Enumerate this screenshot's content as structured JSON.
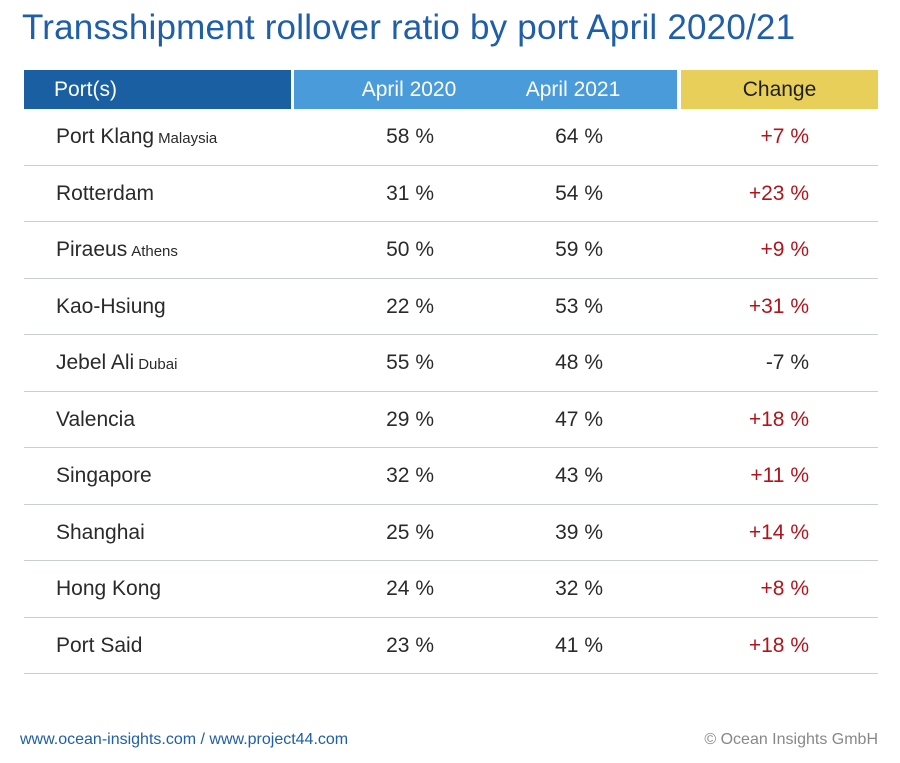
{
  "colors": {
    "title": "#1f5ea8",
    "header_port": "#1b5fa3",
    "header_years": "#4a9bd9",
    "header_change": "#e8cf5a",
    "positive_change": "#b0141c",
    "negative_change": "#2a2a2a"
  },
  "chart_data": {
    "type": "table",
    "title": "Transshipment rollover ratio by port April 2020/21",
    "columns": [
      "Port(s)",
      "April 2020",
      "April 2021",
      "Change"
    ],
    "rows": [
      {
        "port": "Port Klang",
        "sub": "Malaysia",
        "april_2020": "58 %",
        "april_2021": "64 %",
        "change": "+7 %",
        "positive": true
      },
      {
        "port": "Rotterdam",
        "sub": "",
        "april_2020": "31 %",
        "april_2021": "54 %",
        "change": "+23 %",
        "positive": true
      },
      {
        "port": "Piraeus",
        "sub": "Athens",
        "april_2020": "50 %",
        "april_2021": "59 %",
        "change": "+9 %",
        "positive": true
      },
      {
        "port": "Kao-Hsiung",
        "sub": "",
        "april_2020": "22 %",
        "april_2021": "53 %",
        "change": "+31 %",
        "positive": true
      },
      {
        "port": "Jebel Ali",
        "sub": "Dubai",
        "april_2020": "55 %",
        "april_2021": "48 %",
        "change": "-7 %",
        "positive": false
      },
      {
        "port": "Valencia",
        "sub": "",
        "april_2020": "29 %",
        "april_2021": "47 %",
        "change": "+18 %",
        "positive": true
      },
      {
        "port": "Singapore",
        "sub": "",
        "april_2020": "32 %",
        "april_2021": "43 %",
        "change": "+11 %",
        "positive": true
      },
      {
        "port": "Shanghai",
        "sub": "",
        "april_2020": "25 %",
        "april_2021": "39 %",
        "change": "+14 %",
        "positive": true
      },
      {
        "port": "Hong Kong",
        "sub": "",
        "april_2020": "24 %",
        "april_2021": "32 %",
        "change": "+8 %",
        "positive": true
      },
      {
        "port": "Port Said",
        "sub": "",
        "april_2020": "23 %",
        "april_2021": "41 %",
        "change": "+18 %",
        "positive": true
      }
    ]
  },
  "footer": {
    "links": "www.ocean-insights.com / www.project44.com",
    "copyright": "© Ocean Insights GmbH"
  }
}
